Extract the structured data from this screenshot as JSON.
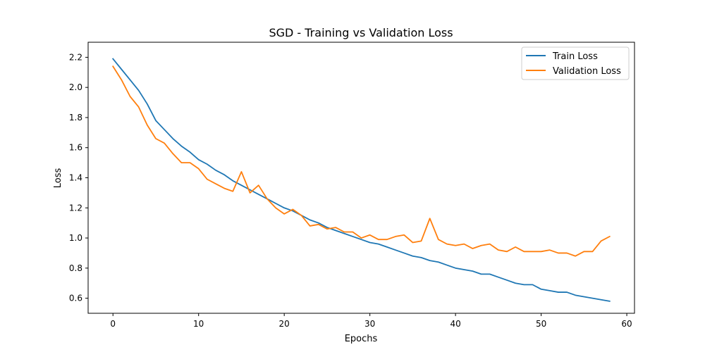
{
  "chart_data": {
    "type": "line",
    "title": "SGD - Training vs Validation Loss",
    "xlabel": "Epochs",
    "ylabel": "Loss",
    "xlim": [
      -2.9,
      60.9
    ],
    "ylim": [
      0.5,
      2.3
    ],
    "xticks": [
      0,
      10,
      20,
      30,
      40,
      50,
      60
    ],
    "yticks": [
      0.6,
      0.8,
      1.0,
      1.2,
      1.4,
      1.6,
      1.8,
      2.0,
      2.2
    ],
    "xtick_labels": [
      "0",
      "10",
      "20",
      "30",
      "40",
      "50",
      "60"
    ],
    "ytick_labels": [
      "0.6",
      "0.8",
      "1.0",
      "1.2",
      "1.4",
      "1.6",
      "1.8",
      "2.0",
      "2.2"
    ],
    "grid": false,
    "legend_position": "top-right",
    "x": [
      0,
      1,
      2,
      3,
      4,
      5,
      6,
      7,
      8,
      9,
      10,
      11,
      12,
      13,
      14,
      15,
      16,
      17,
      18,
      19,
      20,
      21,
      22,
      23,
      24,
      25,
      26,
      27,
      28,
      29,
      30,
      31,
      32,
      33,
      34,
      35,
      36,
      37,
      38,
      39,
      40,
      41,
      42,
      43,
      44,
      45,
      46,
      47,
      48,
      49,
      50,
      51,
      52,
      53,
      54,
      55,
      56,
      57,
      58
    ],
    "series": [
      {
        "name": "Train Loss",
        "color": "#1f77b4",
        "values": [
          2.19,
          2.12,
          2.05,
          1.98,
          1.89,
          1.78,
          1.72,
          1.66,
          1.61,
          1.57,
          1.52,
          1.49,
          1.45,
          1.42,
          1.38,
          1.35,
          1.32,
          1.29,
          1.26,
          1.23,
          1.2,
          1.18,
          1.15,
          1.12,
          1.1,
          1.07,
          1.05,
          1.03,
          1.01,
          0.99,
          0.97,
          0.96,
          0.94,
          0.92,
          0.9,
          0.88,
          0.87,
          0.85,
          0.84,
          0.82,
          0.8,
          0.79,
          0.78,
          0.76,
          0.76,
          0.74,
          0.72,
          0.7,
          0.69,
          0.69,
          0.66,
          0.65,
          0.64,
          0.64,
          0.62,
          0.61,
          0.6,
          0.59,
          0.58
        ]
      },
      {
        "name": "Validation Loss",
        "color": "#ff7f0e",
        "values": [
          2.14,
          2.05,
          1.94,
          1.87,
          1.75,
          1.66,
          1.63,
          1.56,
          1.5,
          1.5,
          1.46,
          1.39,
          1.36,
          1.33,
          1.31,
          1.44,
          1.3,
          1.35,
          1.26,
          1.2,
          1.16,
          1.19,
          1.15,
          1.08,
          1.09,
          1.06,
          1.07,
          1.04,
          1.04,
          1.0,
          1.02,
          0.99,
          0.99,
          1.01,
          1.02,
          0.97,
          0.98,
          1.13,
          0.99,
          0.96,
          0.95,
          0.96,
          0.93,
          0.95,
          0.96,
          0.92,
          0.91,
          0.94,
          0.91,
          0.91,
          0.91,
          0.92,
          0.9,
          0.9,
          0.88,
          0.91,
          0.91,
          0.98,
          1.01
        ]
      }
    ]
  }
}
